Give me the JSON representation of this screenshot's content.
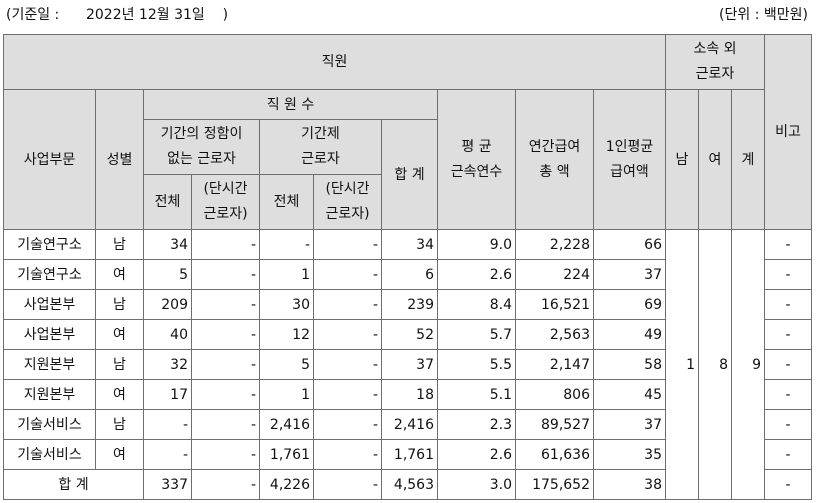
{
  "caption": {
    "basis": "(기준일 :      2022년 12월 31일    )",
    "unit": "(단위 : 백만원)"
  },
  "headers": {
    "employees": "직원",
    "outsourced": [
      "소속 외",
      "근로자"
    ],
    "remark": "비고",
    "division": "사업부문",
    "gender": "성별",
    "headcount": "직 원 수",
    "permanent": [
      "기간의 정함이",
      "없는 근로자"
    ],
    "fixed_term": [
      "기간제",
      "근로자"
    ],
    "total": "합 계",
    "tenure": [
      "평 균",
      "근속연수"
    ],
    "annual_pay": [
      "연간급여",
      "총 액"
    ],
    "avg_pay": [
      "1인평균",
      "급여액"
    ],
    "male": "남",
    "female": "여",
    "sum": "계",
    "all": "전체",
    "part_time": [
      "(단시간",
      "근로자)"
    ]
  },
  "rows": [
    {
      "division": "기술연구소",
      "gender": "남",
      "perm_total": "34",
      "perm_part": "-",
      "fixed_total": "-",
      "fixed_part": "-",
      "total": "34",
      "tenure": "9.0",
      "annual_pay": "2,228",
      "avg_pay": "66",
      "remark": "-"
    },
    {
      "division": "기술연구소",
      "gender": "여",
      "perm_total": "5",
      "perm_part": "-",
      "fixed_total": "1",
      "fixed_part": "-",
      "total": "6",
      "tenure": "2.6",
      "annual_pay": "224",
      "avg_pay": "37",
      "remark": "-"
    },
    {
      "division": "사업본부",
      "gender": "남",
      "perm_total": "209",
      "perm_part": "-",
      "fixed_total": "30",
      "fixed_part": "-",
      "total": "239",
      "tenure": "8.4",
      "annual_pay": "16,521",
      "avg_pay": "69",
      "remark": "-"
    },
    {
      "division": "사업본부",
      "gender": "여",
      "perm_total": "40",
      "perm_part": "-",
      "fixed_total": "12",
      "fixed_part": "-",
      "total": "52",
      "tenure": "5.7",
      "annual_pay": "2,563",
      "avg_pay": "49",
      "remark": "-"
    },
    {
      "division": "지원본부",
      "gender": "남",
      "perm_total": "32",
      "perm_part": "-",
      "fixed_total": "5",
      "fixed_part": "-",
      "total": "37",
      "tenure": "5.5",
      "annual_pay": "2,147",
      "avg_pay": "58",
      "remark": "-"
    },
    {
      "division": "지원본부",
      "gender": "여",
      "perm_total": "17",
      "perm_part": "-",
      "fixed_total": "1",
      "fixed_part": "-",
      "total": "18",
      "tenure": "5.1",
      "annual_pay": "806",
      "avg_pay": "45",
      "remark": "-"
    },
    {
      "division": "기술서비스",
      "gender": "남",
      "perm_total": "-",
      "perm_part": "-",
      "fixed_total": "2,416",
      "fixed_part": "-",
      "total": "2,416",
      "tenure": "2.3",
      "annual_pay": "89,527",
      "avg_pay": "37",
      "remark": "-"
    },
    {
      "division": "기술서비스",
      "gender": "여",
      "perm_total": "-",
      "perm_part": "-",
      "fixed_total": "1,761",
      "fixed_part": "-",
      "total": "1,761",
      "tenure": "2.6",
      "annual_pay": "61,636",
      "avg_pay": "35",
      "remark": "-"
    }
  ],
  "outsourced_counts": {
    "male": "1",
    "female": "8",
    "total": "9"
  },
  "summary": {
    "label": "합 계",
    "perm_total": "337",
    "perm_part": "-",
    "fixed_total": "4,226",
    "fixed_part": "-",
    "total": "4,563",
    "tenure": "3.0",
    "annual_pay": "175,652",
    "avg_pay": "38",
    "remark": "-"
  }
}
